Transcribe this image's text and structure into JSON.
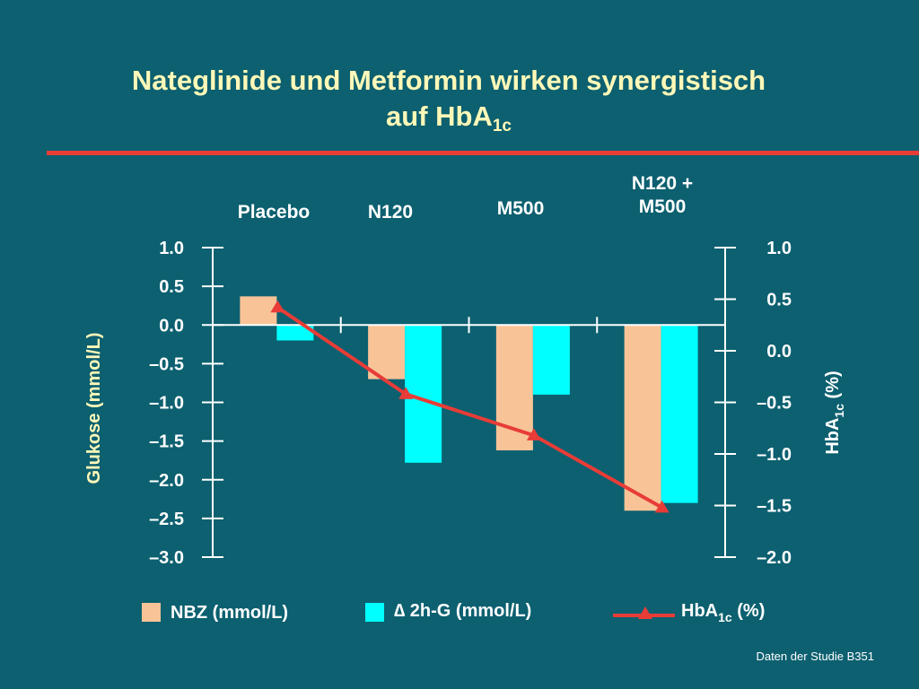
{
  "title": {
    "line1": "Nateglinide und Metformin wirken synergistisch",
    "line2": "auf HbA",
    "line2_sub": "1c"
  },
  "source": "Daten der Studie B351",
  "colors": {
    "background": "#0c6070",
    "title": "#fff8b8",
    "accent_rule": "#e83c37",
    "nbz": "#f8c497",
    "g2h": "#00ffff",
    "hba1c": "#e83c37",
    "axis": "#ffffff",
    "text": "#ffffff"
  },
  "chart_data": {
    "type": "bar",
    "categories": [
      "Placebo",
      "N120",
      "M500",
      "N120 + M500"
    ],
    "category_label_lines": [
      [
        "Placebo"
      ],
      [
        "N120"
      ],
      [
        "M500"
      ],
      [
        "N120 +",
        "M500"
      ]
    ],
    "series": [
      {
        "name": "NBZ (mmol/L)",
        "axis": "left",
        "type": "bar",
        "values": [
          0.37,
          -0.7,
          -1.62,
          -2.4
        ]
      },
      {
        "name": "∆ 2h-G (mmol/L)",
        "axis": "left",
        "type": "bar",
        "values": [
          -0.2,
          -1.78,
          -0.9,
          -2.3
        ]
      },
      {
        "name": "HbA1c (%)",
        "axis": "right",
        "type": "line",
        "marker": "triangle",
        "values": [
          0.42,
          -0.42,
          -0.82,
          -1.52
        ]
      }
    ],
    "y_left": {
      "label": "Glukose (mmol/L)",
      "range": [
        -3.0,
        1.0
      ],
      "ticks": [
        1.0,
        0.5,
        0.0,
        -0.5,
        -1.0,
        -1.5,
        -2.0,
        -2.5,
        -3.0
      ],
      "tick_labels": [
        "1.0",
        "0.5",
        "0.0",
        "–0.5",
        "–1.0",
        "–1.5",
        "–2.0",
        "–2.5",
        "–3.0"
      ]
    },
    "y_right": {
      "label": "HbA",
      "label_sub": "1c",
      "label_suffix": " (%)",
      "range": [
        -2.0,
        1.0
      ],
      "ticks": [
        1.0,
        0.5,
        0.0,
        -0.5,
        -1.0,
        -1.5,
        -2.0
      ],
      "tick_labels": [
        "1.0",
        "0.5",
        "0.0",
        "–0.5",
        "–1.0",
        "–1.5",
        "–2.0"
      ]
    },
    "legend": {
      "position": "bottom",
      "items": [
        {
          "key": "nbz",
          "label": "NBZ (mmol/L)"
        },
        {
          "key": "g2h",
          "label": "∆ 2h-G (mmol/L)"
        },
        {
          "key": "hba1c",
          "label": "HbA",
          "label_sub": "1c",
          "label_suffix": " (%)"
        }
      ]
    },
    "grid": false
  }
}
